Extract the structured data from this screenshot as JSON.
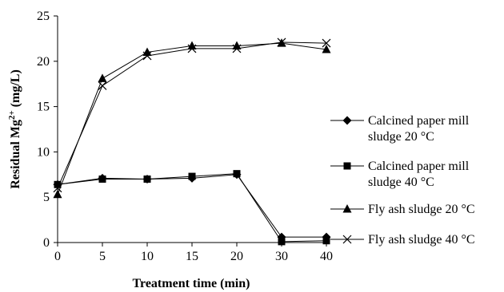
{
  "chart_data": {
    "type": "line",
    "title": "",
    "xlabel": "Treatment time (min)",
    "ylabel": {
      "base": "Residual Mg",
      "sup": "2+",
      "unit": " (mg/L)"
    },
    "categories": [
      "0",
      "5",
      "10",
      "15",
      "20",
      "30",
      "40"
    ],
    "ylim": [
      0,
      25
    ],
    "yticks": [
      0,
      5,
      10,
      15,
      20,
      25
    ],
    "grid": false,
    "legend_position": "right",
    "series": [
      {
        "name_lines": [
          "Calcined paper mill",
          "sludge 20 °C"
        ],
        "marker": "diamond",
        "values": [
          6.4,
          7.1,
          7.0,
          7.1,
          7.5,
          0.6,
          0.6
        ]
      },
      {
        "name_lines": [
          "Calcined paper mill",
          "sludge 40 °C"
        ],
        "marker": "square",
        "values": [
          6.4,
          7.0,
          7.0,
          7.3,
          7.6,
          0.1,
          0.2
        ]
      },
      {
        "name_lines": [
          "Fly ash sludge 20 °C"
        ],
        "marker": "triangle",
        "values": [
          5.3,
          18.1,
          21.0,
          21.7,
          21.7,
          22.0,
          21.3
        ]
      },
      {
        "name_lines": [
          "Fly ash sludge 40 °C"
        ],
        "marker": "x",
        "values": [
          6.0,
          17.3,
          20.6,
          21.4,
          21.4,
          22.1,
          22.0
        ]
      }
    ]
  }
}
